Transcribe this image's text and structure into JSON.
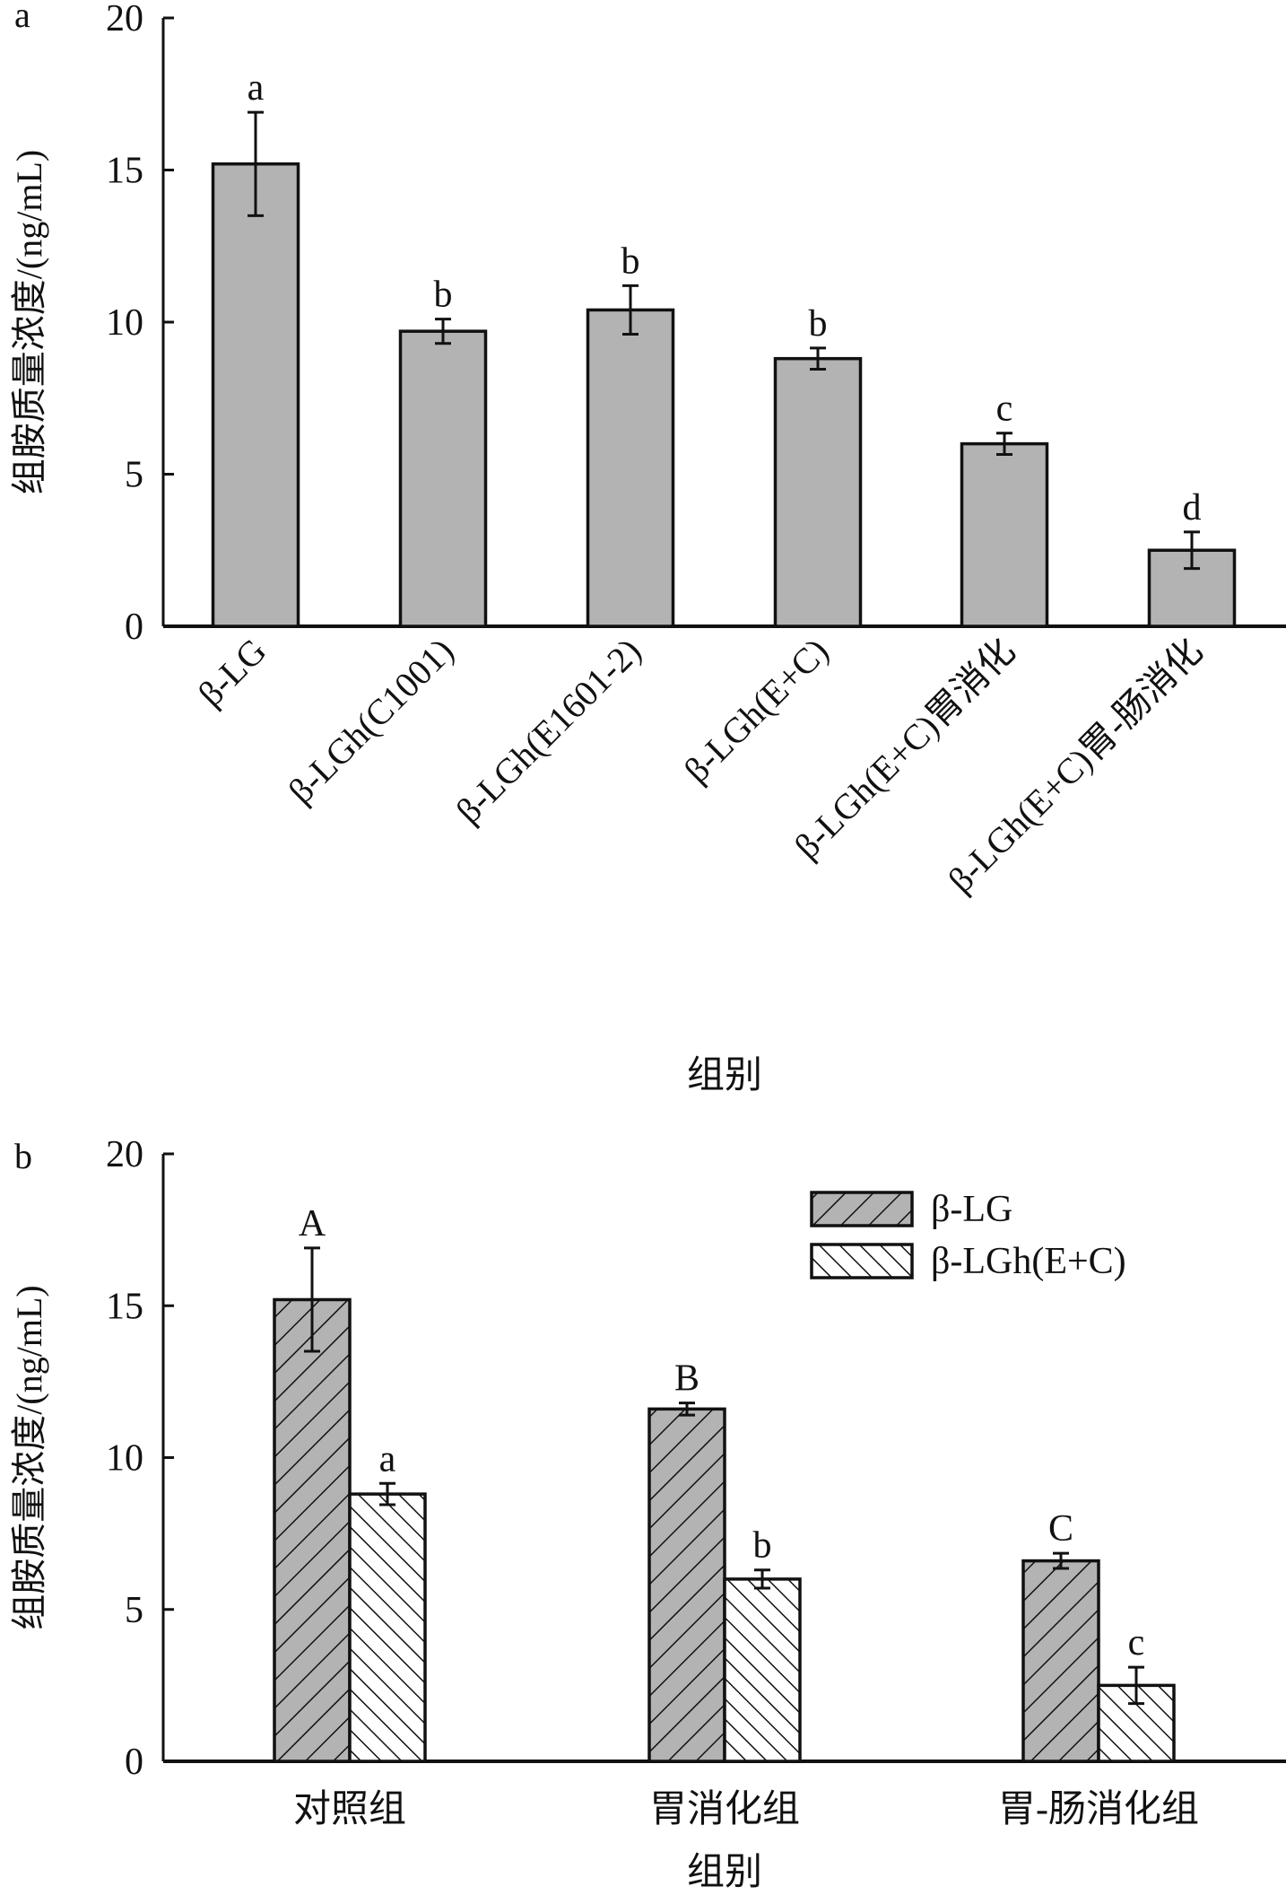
{
  "chart_data": [
    {
      "panel": "a",
      "type": "bar",
      "ylabel": "组胺质量浓度/(ng/mL)",
      "xlabel": "组别",
      "ylim": [
        0,
        20
      ],
      "yticks": [
        "0",
        "5",
        "10",
        "15",
        "20"
      ],
      "categories": [
        "β-LG",
        "β-LGh(C1001)",
        "β-LGh(E1601-2)",
        "β-LGh(E+C)",
        "β-LGh(E+C)胃消化",
        "β-LGh(E+C)胃-肠消化"
      ],
      "values": [
        15.2,
        9.7,
        10.4,
        8.8,
        6.0,
        2.5
      ],
      "errors": [
        1.7,
        0.4,
        0.8,
        0.35,
        0.35,
        0.6
      ],
      "sig_letters": [
        "a",
        "b",
        "b",
        "b",
        "c",
        "d"
      ],
      "bar_color": "#b3b3b3"
    },
    {
      "panel": "b",
      "type": "bar",
      "ylabel": "组胺质量浓度/(ng/mL)",
      "xlabel": "组别",
      "ylim": [
        0,
        20
      ],
      "yticks": [
        "0",
        "5",
        "10",
        "15",
        "20"
      ],
      "categories": [
        "对照组",
        "胃消化组",
        "胃-肠消化组"
      ],
      "legend_position": "top-right",
      "series": [
        {
          "name": "β-LG",
          "values": [
            15.2,
            11.6,
            6.6
          ],
          "errors": [
            1.7,
            0.2,
            0.25
          ],
          "sig_letters": [
            "A",
            "B",
            "C"
          ],
          "fill": "#b3b3b3",
          "hatch": "backslash"
        },
        {
          "name": "β-LGh(E+C)",
          "values": [
            8.8,
            6.0,
            2.5
          ],
          "errors": [
            0.35,
            0.3,
            0.6
          ],
          "sig_letters": [
            "a",
            "b",
            "c"
          ],
          "fill": "#ffffff",
          "hatch": "slash"
        }
      ]
    }
  ]
}
